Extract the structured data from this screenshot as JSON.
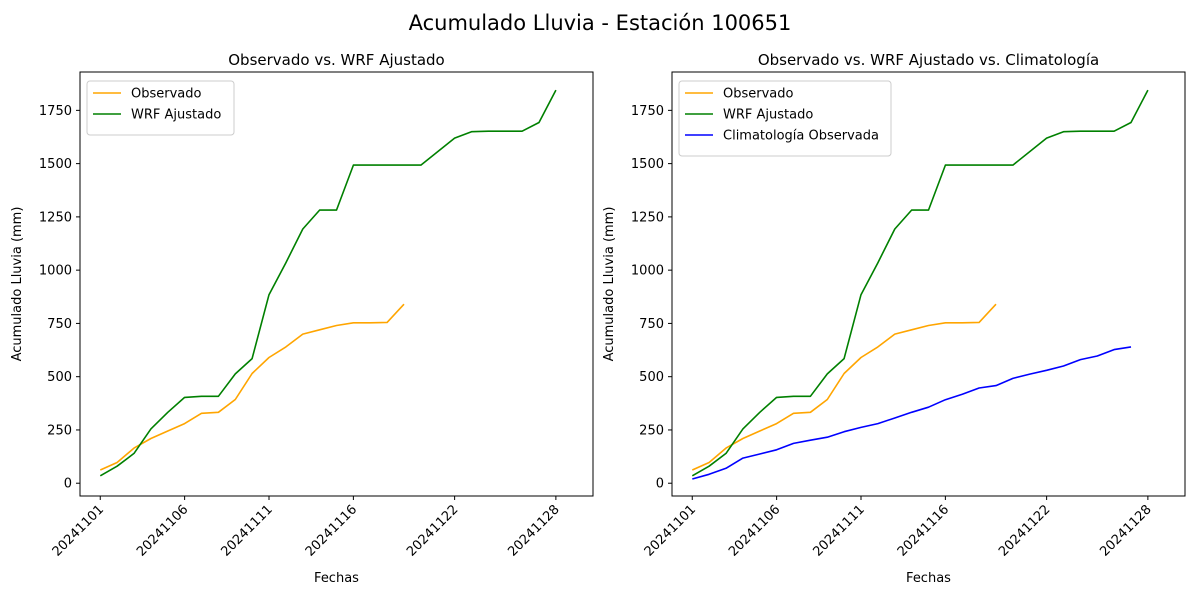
{
  "suptitle": "Acumulado Lluvia - Estación 100651",
  "chart_data": [
    {
      "type": "line",
      "title": "Observado vs. WRF Ajustado",
      "xlabel": "Fechas",
      "ylabel": "Acumulado Lluvia (mm)",
      "xticks": [
        "20241101",
        "20241106",
        "20241111",
        "20241116",
        "20241122",
        "20241128"
      ],
      "yticks": [
        0,
        250,
        500,
        750,
        1000,
        1250,
        1500,
        1750
      ],
      "ylim": [
        -60,
        1930
      ],
      "legend": "upper left",
      "grid": false,
      "series": [
        {
          "name": "Observado",
          "color": "#ffa500",
          "x": [
            "20241101",
            "20241102",
            "20241103",
            "20241104",
            "20241105",
            "20241106",
            "20241107",
            "20241108",
            "20241109",
            "20241110",
            "20241111",
            "20241112",
            "20241113",
            "20241114",
            "20241115",
            "20241116",
            "20241117",
            "20241118",
            "20241119"
          ],
          "y": [
            62,
            97,
            165,
            210,
            245,
            280,
            328,
            333,
            393,
            515,
            590,
            640,
            700,
            720,
            740,
            753,
            753,
            755,
            840
          ]
        },
        {
          "name": "WRF Ajustado",
          "color": "#008000",
          "x": [
            "20241101",
            "20241102",
            "20241103",
            "20241104",
            "20241105",
            "20241106",
            "20241107",
            "20241108",
            "20241109",
            "20241110",
            "20241111",
            "20241112",
            "20241113",
            "20241114",
            "20241115",
            "20241116",
            "20241117",
            "20241118",
            "20241120",
            "20241122",
            "20241123",
            "20241124",
            "20241126",
            "20241127",
            "20241128"
          ],
          "y": [
            35,
            80,
            140,
            255,
            333,
            403,
            408,
            408,
            513,
            585,
            885,
            1035,
            1193,
            1282,
            1282,
            1493,
            1493,
            1493,
            1493,
            1620,
            1650,
            1652,
            1652,
            1693,
            1845
          ]
        }
      ]
    },
    {
      "type": "line",
      "title": "Observado vs. WRF Ajustado vs. Climatología",
      "xlabel": "Fechas",
      "ylabel": "Acumulado Lluvia (mm)",
      "xticks": [
        "20241101",
        "20241106",
        "20241111",
        "20241116",
        "20241122",
        "20241128"
      ],
      "yticks": [
        0,
        250,
        500,
        750,
        1000,
        1250,
        1500,
        1750
      ],
      "ylim": [
        -60,
        1930
      ],
      "legend": "upper left",
      "grid": false,
      "series": [
        {
          "name": "Observado",
          "color": "#ffa500",
          "x": [
            "20241101",
            "20241102",
            "20241103",
            "20241104",
            "20241105",
            "20241106",
            "20241107",
            "20241108",
            "20241109",
            "20241110",
            "20241111",
            "20241112",
            "20241113",
            "20241114",
            "20241115",
            "20241116",
            "20241117",
            "20241118",
            "20241119"
          ],
          "y": [
            62,
            97,
            165,
            210,
            245,
            280,
            328,
            333,
            393,
            515,
            590,
            640,
            700,
            720,
            740,
            753,
            753,
            755,
            840
          ]
        },
        {
          "name": "WRF Ajustado",
          "color": "#008000",
          "x": [
            "20241101",
            "20241102",
            "20241103",
            "20241104",
            "20241105",
            "20241106",
            "20241107",
            "20241108",
            "20241109",
            "20241110",
            "20241111",
            "20241112",
            "20241113",
            "20241114",
            "20241115",
            "20241116",
            "20241117",
            "20241118",
            "20241120",
            "20241122",
            "20241123",
            "20241124",
            "20241126",
            "20241127",
            "20241128"
          ],
          "y": [
            35,
            80,
            140,
            255,
            333,
            403,
            408,
            408,
            513,
            585,
            885,
            1035,
            1193,
            1282,
            1282,
            1493,
            1493,
            1493,
            1493,
            1620,
            1650,
            1652,
            1652,
            1693,
            1845
          ]
        },
        {
          "name": "Climatología Observada",
          "color": "#0000ff",
          "x": [
            "20241101",
            "20241102",
            "20241103",
            "20241104",
            "20241105",
            "20241106",
            "20241107",
            "20241108",
            "20241109",
            "20241110",
            "20241111",
            "20241112",
            "20241113",
            "20241114",
            "20241115",
            "20241116",
            "20241117",
            "20241118",
            "20241119",
            "20241120",
            "20241121",
            "20241122",
            "20241123",
            "20241124",
            "20241125",
            "20241126",
            "20241127"
          ],
          "y": [
            20,
            42,
            70,
            118,
            137,
            157,
            187,
            202,
            216,
            242,
            262,
            280,
            306,
            333,
            357,
            392,
            418,
            447,
            458,
            492,
            512,
            530,
            550,
            580,
            597,
            627,
            640
          ]
        }
      ]
    }
  ]
}
